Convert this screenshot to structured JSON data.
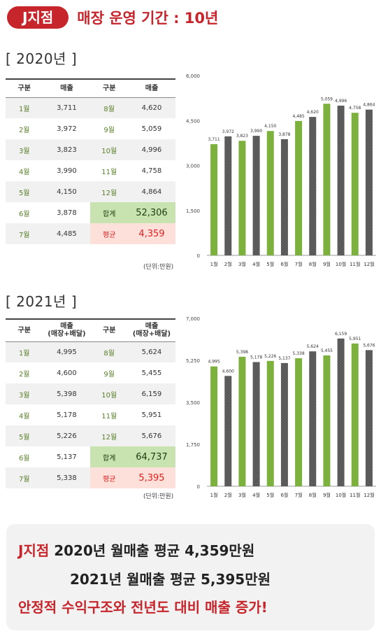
{
  "header": {
    "badge": "J지점",
    "title": "매장 운영 기간 : 10년"
  },
  "colors": {
    "accent": "#c6252b",
    "green": "#7db13d",
    "dark": "#555555",
    "total_bg": "#c9e3b0",
    "avg_bg": "#fde0da"
  },
  "y2020": {
    "label": "[ 2020년 ]",
    "table": {
      "headers": [
        "구분",
        "매출",
        "구분",
        "매출"
      ],
      "rows": [
        [
          "1월",
          "3,711",
          "8월",
          "4,620"
        ],
        [
          "2월",
          "3,972",
          "9월",
          "5,059"
        ],
        [
          "3월",
          "3,823",
          "10월",
          "4,996"
        ],
        [
          "4월",
          "3,990",
          "11월",
          "4,758"
        ],
        [
          "5월",
          "4,150",
          "12월",
          "4,864"
        ],
        [
          "6월",
          "3,878",
          "합계",
          "52,306"
        ],
        [
          "7월",
          "4,485",
          "평균",
          "4,359"
        ]
      ],
      "unit": "(단위:만원)"
    }
  },
  "y2021": {
    "label": "[ 2021년 ]",
    "table": {
      "headers": [
        "구분",
        "매출\n(매장+배달)",
        "구분",
        "매출\n(매장+배달)"
      ],
      "rows": [
        [
          "1월",
          "4,995",
          "8월",
          "5,624"
        ],
        [
          "2월",
          "4,600",
          "9월",
          "5,455"
        ],
        [
          "3월",
          "5,398",
          "10월",
          "6,159"
        ],
        [
          "4월",
          "5,178",
          "11월",
          "5,951"
        ],
        [
          "5월",
          "5,226",
          "12월",
          "5,676"
        ],
        [
          "6월",
          "5,137",
          "합계",
          "64,737"
        ],
        [
          "7월",
          "5,338",
          "평균",
          "5,395"
        ]
      ],
      "unit": "(단위:만원)"
    }
  },
  "chart_data": [
    {
      "type": "bar",
      "categories": [
        "1월",
        "2월",
        "3월",
        "4월",
        "5월",
        "6월",
        "7월",
        "8월",
        "9월",
        "10월",
        "11월",
        "12월"
      ],
      "values": [
        3711,
        3972,
        3823,
        3990,
        4150,
        3878,
        4485,
        4620,
        5059,
        4996,
        4758,
        4864
      ],
      "value_labels": [
        "3,711",
        "3,972",
        "3,823",
        "3,990",
        "4,150",
        "3,878",
        "4,485",
        "4,620",
        "5,059",
        "4,996",
        "4,758",
        "4,864"
      ],
      "ylim": [
        0,
        6000
      ],
      "yticks": [
        0,
        1500,
        3000,
        4500,
        6000
      ],
      "ytick_labels": [
        "0",
        "1,500",
        "3,000",
        "4,500",
        "6,000"
      ],
      "bar_colors": [
        "green",
        "dark",
        "green",
        "dark",
        "green",
        "dark",
        "green",
        "dark",
        "green",
        "dark",
        "green",
        "dark"
      ],
      "grid": false
    },
    {
      "type": "bar",
      "categories": [
        "1월",
        "2월",
        "3월",
        "4월",
        "5월",
        "6월",
        "7월",
        "8월",
        "9월",
        "10월",
        "11월",
        "12월"
      ],
      "values": [
        4995,
        4600,
        5398,
        5178,
        5226,
        5137,
        5338,
        5624,
        5455,
        6159,
        5951,
        5676
      ],
      "value_labels": [
        "4,995",
        "4,600",
        "5,398",
        "5,178",
        "5,226",
        "5,137",
        "5,338",
        "5,624",
        "5,455",
        "6,159",
        "5,951",
        "5,676"
      ],
      "ylim": [
        0,
        7000
      ],
      "yticks": [
        0,
        1750,
        3500,
        5250,
        7000
      ],
      "ytick_labels": [
        "0",
        "1,750",
        "3,500",
        "5,250",
        "7,000"
      ],
      "bar_colors": [
        "green",
        "dark",
        "green",
        "dark",
        "green",
        "dark",
        "green",
        "dark",
        "green",
        "dark",
        "green",
        "dark"
      ],
      "grid": false
    }
  ],
  "summary": {
    "line1_prefix": "J지점",
    "line1_text": " 2020년 월매출 평균 4,359만원",
    "line2_text": "2021년 월매출 평균 5,395만원",
    "line3_text": "안정적 수익구조와 전년도 대비 매출 증가!"
  }
}
